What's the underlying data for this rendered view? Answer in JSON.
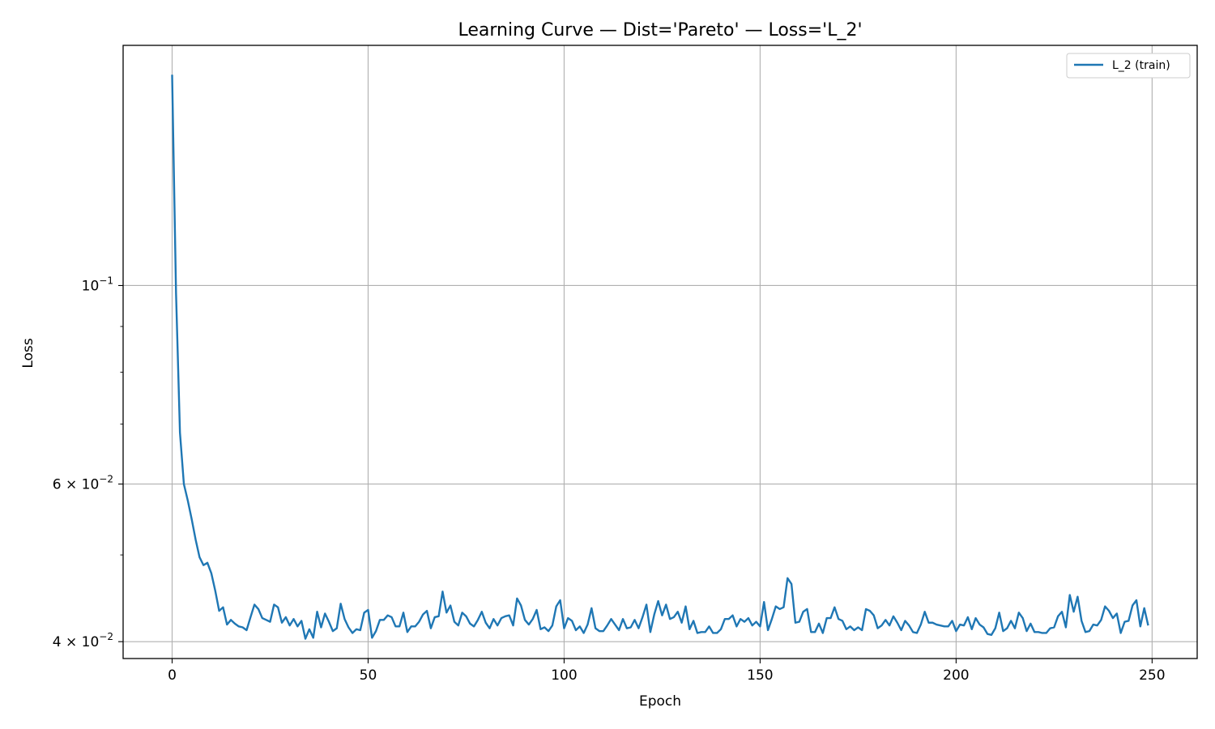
{
  "chart_data": {
    "type": "line",
    "title": "Learning Curve — Dist='Pareto' — Loss='L_2'",
    "xlabel": "Epoch",
    "ylabel": "Loss",
    "xlim": [
      -12.5,
      261.5
    ],
    "ylim": [
      0.0383,
      0.1855
    ],
    "yscale": "log",
    "grid": true,
    "legend_location": "upper right",
    "x_ticks": [
      0,
      50,
      100,
      150,
      200,
      250
    ],
    "y_ticks": [
      {
        "value": 0.1,
        "base": "10",
        "exp": "−1",
        "mantissa": ""
      },
      {
        "value": 0.06,
        "base": "10",
        "exp": "−2",
        "mantissa": "6 × "
      },
      {
        "value": 0.04,
        "base": "10",
        "exp": "−2",
        "mantissa": "4 × "
      }
    ],
    "series": [
      {
        "name": "L_2 (train)",
        "color": "#1f77b4",
        "x_start": 0,
        "values": [
          0.172,
          0.098,
          0.0685,
          0.06,
          0.0575,
          0.0548,
          0.052,
          0.0497,
          0.0487,
          0.049,
          0.0477,
          0.0456,
          0.0433,
          0.0437,
          0.0418,
          0.0423,
          0.0419,
          0.0416,
          0.0415,
          0.0412,
          0.0426,
          0.044,
          0.0435,
          0.0425,
          0.0423,
          0.0421,
          0.044,
          0.0437,
          0.042,
          0.0426,
          0.0417,
          0.0424,
          0.0416,
          0.0422,
          0.0403,
          0.0413,
          0.0404,
          0.0432,
          0.0415,
          0.043,
          0.0421,
          0.0411,
          0.0414,
          0.0441,
          0.0424,
          0.0415,
          0.0409,
          0.0413,
          0.0412,
          0.0431,
          0.0434,
          0.0404,
          0.0411,
          0.0423,
          0.0423,
          0.0428,
          0.0426,
          0.0416,
          0.0416,
          0.0431,
          0.041,
          0.0416,
          0.0416,
          0.0421,
          0.0429,
          0.0433,
          0.0414,
          0.0426,
          0.0427,
          0.0455,
          0.0431,
          0.0439,
          0.0421,
          0.0417,
          0.0431,
          0.0427,
          0.0419,
          0.0416,
          0.0423,
          0.0432,
          0.042,
          0.0414,
          0.0424,
          0.0417,
          0.0425,
          0.0427,
          0.0428,
          0.0417,
          0.0447,
          0.0439,
          0.0423,
          0.0418,
          0.0424,
          0.0434,
          0.0413,
          0.0415,
          0.0411,
          0.0417,
          0.0438,
          0.0445,
          0.0414,
          0.0425,
          0.0422,
          0.0412,
          0.0416,
          0.0409,
          0.0418,
          0.0436,
          0.0414,
          0.0411,
          0.0411,
          0.0417,
          0.0424,
          0.0418,
          0.0412,
          0.0424,
          0.0414,
          0.0415,
          0.0423,
          0.0414,
          0.0426,
          0.044,
          0.041,
          0.0429,
          0.0444,
          0.0428,
          0.044,
          0.0424,
          0.0426,
          0.0432,
          0.042,
          0.0438,
          0.0413,
          0.0422,
          0.0409,
          0.041,
          0.041,
          0.0416,
          0.0409,
          0.0409,
          0.0413,
          0.0424,
          0.0424,
          0.0428,
          0.0416,
          0.0424,
          0.0421,
          0.0425,
          0.0417,
          0.0421,
          0.0416,
          0.0443,
          0.0412,
          0.0424,
          0.0438,
          0.0435,
          0.0437,
          0.0471,
          0.0464,
          0.042,
          0.0421,
          0.0432,
          0.0435,
          0.041,
          0.041,
          0.0419,
          0.0409,
          0.0425,
          0.0425,
          0.0437,
          0.0424,
          0.0422,
          0.0413,
          0.0416,
          0.0412,
          0.0415,
          0.0412,
          0.0435,
          0.0433,
          0.0428,
          0.0414,
          0.0417,
          0.0423,
          0.0417,
          0.0427,
          0.042,
          0.0412,
          0.0422,
          0.0417,
          0.041,
          0.0409,
          0.0418,
          0.0432,
          0.042,
          0.042,
          0.0418,
          0.0417,
          0.0416,
          0.0416,
          0.0422,
          0.0411,
          0.0418,
          0.0417,
          0.0426,
          0.0413,
          0.0425,
          0.0418,
          0.0415,
          0.0408,
          0.0407,
          0.0414,
          0.0431,
          0.0411,
          0.0414,
          0.0422,
          0.0414,
          0.0431,
          0.0425,
          0.0411,
          0.0419,
          0.041,
          0.041,
          0.0409,
          0.0409,
          0.0414,
          0.0415,
          0.0427,
          0.0432,
          0.0415,
          0.0451,
          0.0432,
          0.0449,
          0.0422,
          0.041,
          0.0411,
          0.0418,
          0.0417,
          0.0423,
          0.0438,
          0.0433,
          0.0425,
          0.043,
          0.0409,
          0.0421,
          0.0422,
          0.0439,
          0.0445,
          0.0416,
          0.0436,
          0.0417
        ]
      }
    ]
  }
}
